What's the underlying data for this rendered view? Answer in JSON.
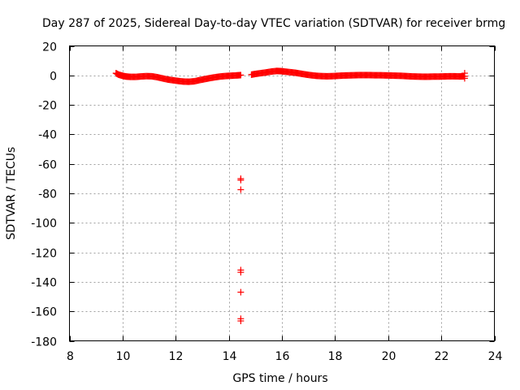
{
  "chart_data": {
    "type": "scatter",
    "title": "Day 287 of 2025, Sidereal Day-to-day VTEC variation (SDTVAR) for receiver brmg",
    "xlabel": "GPS time / hours",
    "ylabel": "SDTVAR / TECUs",
    "xlim": [
      8,
      24
    ],
    "ylim": [
      -180,
      20
    ],
    "xticks": [
      8,
      10,
      12,
      14,
      16,
      18,
      20,
      22,
      24
    ],
    "yticks": [
      20,
      0,
      -20,
      -40,
      -60,
      -80,
      -100,
      -120,
      -140,
      -160,
      -180
    ],
    "grid": true,
    "marker_color": "#ff0000",
    "series": [
      {
        "name": "SDTVAR",
        "points": [
          [
            9.75,
            1.5
          ],
          [
            9.85,
            0.5
          ],
          [
            9.95,
            0.0
          ],
          [
            10.05,
            -0.5
          ],
          [
            10.15,
            -0.8
          ],
          [
            10.3,
            -1.0
          ],
          [
            10.5,
            -1.0
          ],
          [
            10.7,
            -0.7
          ],
          [
            10.9,
            -0.5
          ],
          [
            11.1,
            -0.6
          ],
          [
            11.3,
            -1.2
          ],
          [
            11.5,
            -2.0
          ],
          [
            11.7,
            -2.8
          ],
          [
            11.9,
            -3.3
          ],
          [
            12.1,
            -3.8
          ],
          [
            12.3,
            -4.2
          ],
          [
            12.5,
            -4.3
          ],
          [
            12.7,
            -4.0
          ],
          [
            12.9,
            -3.2
          ],
          [
            13.1,
            -2.5
          ],
          [
            13.3,
            -1.8
          ],
          [
            13.5,
            -1.2
          ],
          [
            13.7,
            -0.7
          ],
          [
            13.9,
            -0.4
          ],
          [
            14.1,
            -0.2
          ],
          [
            14.3,
            0.0
          ],
          [
            14.45,
            0.2
          ],
          [
            14.45,
            -70
          ],
          [
            14.45,
            -71
          ],
          [
            14.45,
            -77.5
          ],
          [
            14.45,
            -132
          ],
          [
            14.45,
            -133.5
          ],
          [
            14.45,
            -147
          ],
          [
            14.45,
            -165
          ],
          [
            14.45,
            -166.5
          ],
          [
            14.85,
            0.5
          ],
          [
            15.0,
            1.0
          ],
          [
            15.2,
            1.5
          ],
          [
            15.4,
            2.0
          ],
          [
            15.6,
            2.6
          ],
          [
            15.8,
            3.0
          ],
          [
            15.95,
            2.9
          ],
          [
            16.1,
            2.6
          ],
          [
            16.3,
            2.2
          ],
          [
            16.5,
            1.8
          ],
          [
            16.7,
            1.2
          ],
          [
            16.9,
            0.6
          ],
          [
            17.1,
            0.1
          ],
          [
            17.3,
            -0.3
          ],
          [
            17.5,
            -0.5
          ],
          [
            17.7,
            -0.6
          ],
          [
            17.9,
            -0.5
          ],
          [
            18.1,
            -0.3
          ],
          [
            18.3,
            -0.1
          ],
          [
            18.5,
            0.0
          ],
          [
            18.7,
            0.1
          ],
          [
            18.9,
            0.2
          ],
          [
            19.1,
            0.2
          ],
          [
            19.3,
            0.2
          ],
          [
            19.5,
            0.1
          ],
          [
            19.7,
            0.1
          ],
          [
            19.9,
            0.0
          ],
          [
            20.1,
            -0.1
          ],
          [
            20.3,
            -0.2
          ],
          [
            20.5,
            -0.3
          ],
          [
            20.7,
            -0.5
          ],
          [
            20.9,
            -0.7
          ],
          [
            21.1,
            -0.8
          ],
          [
            21.3,
            -0.9
          ],
          [
            21.5,
            -0.9
          ],
          [
            21.7,
            -0.8
          ],
          [
            21.9,
            -0.8
          ],
          [
            22.1,
            -0.7
          ],
          [
            22.3,
            -0.6
          ],
          [
            22.5,
            -0.6
          ],
          [
            22.7,
            -0.7
          ],
          [
            22.88,
            -0.6
          ],
          [
            22.88,
            1.5
          ],
          [
            22.88,
            -2.0
          ]
        ]
      }
    ]
  }
}
